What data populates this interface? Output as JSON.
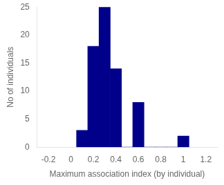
{
  "chart_data": {
    "type": "histogram",
    "bins": [
      0.05,
      0.15,
      0.25,
      0.35,
      0.45,
      0.55,
      0.65,
      0.75,
      0.85,
      0.95,
      1.05
    ],
    "values": [
      3,
      18,
      25,
      14,
      0,
      8,
      0,
      0,
      0,
      2
    ],
    "color": "#00008B",
    "xlabel": "Maximum association index (by individual)",
    "ylabel": "No of individuals",
    "xlim": [
      -0.2,
      1.2
    ],
    "xticks": [
      -0.2,
      0,
      0.2,
      0.4,
      0.6,
      0.8,
      1,
      1.2
    ],
    "ylim": [
      0,
      25
    ],
    "yticks": [
      0,
      5,
      10,
      15,
      20,
      25
    ],
    "grid": false
  }
}
